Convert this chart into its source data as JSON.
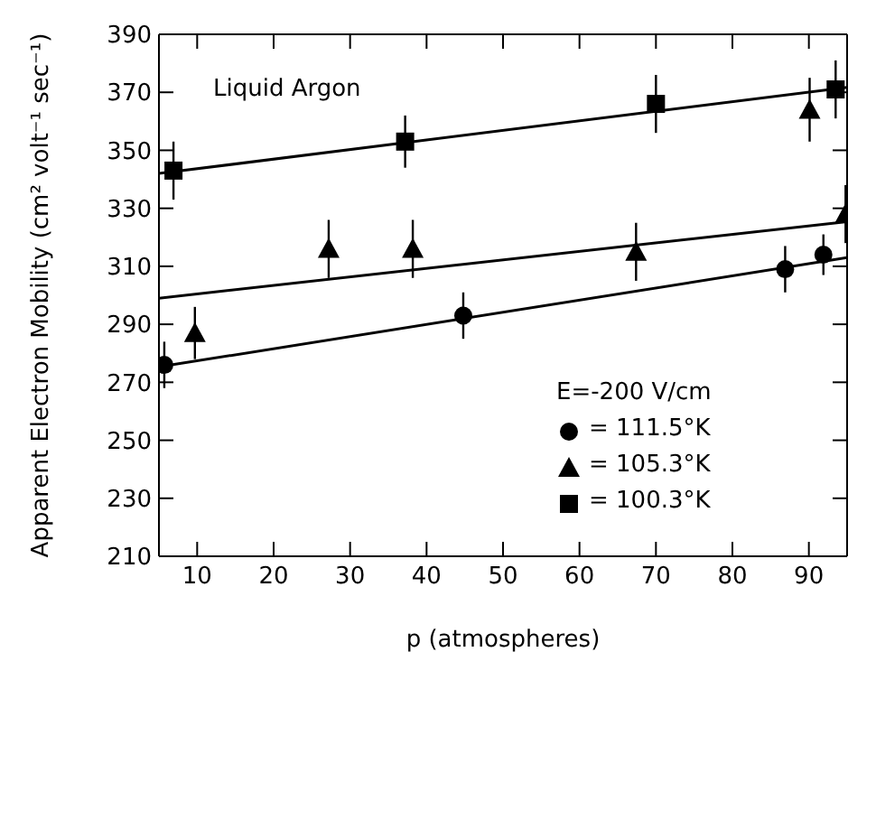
{
  "chart_data": {
    "type": "scatter",
    "xlabel": "p (atmospheres)",
    "ylabel": "Apparent Electron Mobility (cm² volt⁻¹ sec⁻¹)",
    "annotations": [
      "Liquid Argon"
    ],
    "legend_title": "E=-200 V/cm",
    "legend": "bottom right",
    "xlim": [
      5,
      95
    ],
    "xticks": [
      10,
      20,
      30,
      40,
      50,
      60,
      70,
      80,
      90
    ],
    "ylim": [
      210,
      390
    ],
    "yticks": [
      210,
      230,
      250,
      270,
      290,
      310,
      330,
      350,
      370,
      390
    ],
    "grid": false,
    "series": [
      {
        "name": "= 111.5°K",
        "color": "#000000",
        "marker": "circle",
        "x": [
          5.7,
          44.8,
          86.9,
          91.9
        ],
        "values": [
          276,
          293,
          309,
          314
        ],
        "errors": [
          8,
          8,
          8,
          7
        ]
      },
      {
        "name": "= 105.3°K",
        "color": "#000000",
        "marker": "triangle",
        "x": [
          9.7,
          27.2,
          38.2,
          67.4,
          90.1,
          94.8
        ],
        "values": [
          287,
          316,
          316,
          315,
          364,
          328
        ],
        "errors": [
          9,
          10,
          10,
          10,
          11,
          10
        ]
      },
      {
        "name": "= 100.3°K",
        "color": "#000000",
        "marker": "square",
        "x": [
          6.9,
          37.2,
          70,
          93.5
        ],
        "values": [
          343,
          353,
          366,
          371
        ],
        "errors": [
          10,
          9,
          10,
          10
        ]
      },
      {
        "type": "line",
        "color": "#000000",
        "x": [
          5.7,
          95
        ],
        "values": [
          275.6,
          313
        ]
      },
      {
        "type": "line",
        "color": "#000000",
        "x": [
          5,
          95
        ],
        "values": [
          299,
          325.4
        ]
      },
      {
        "type": "line",
        "color": "#000000",
        "x": [
          5,
          95
        ],
        "values": [
          342,
          371.7
        ]
      }
    ]
  }
}
